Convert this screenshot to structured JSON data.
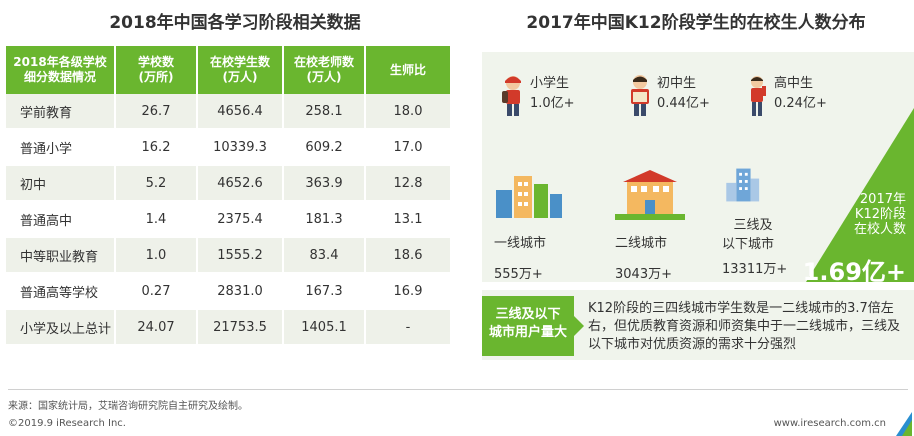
{
  "left_title": "2018年中国各学习阶段相关数据",
  "right_title": "2017年中国K12阶段学生的在校生人数分布",
  "table": {
    "headers": [
      [
        "2018年各级学校",
        "细分数据情况"
      ],
      [
        "学校数",
        "(万所)"
      ],
      [
        "在校学生数",
        "(万人)"
      ],
      [
        "在校老师数",
        "(万人)"
      ],
      [
        "生师比"
      ]
    ],
    "rows": [
      [
        "学前教育",
        "26.7",
        "4656.4",
        "258.1",
        "18.0"
      ],
      [
        "普通小学",
        "16.2",
        "10339.3",
        "609.2",
        "17.0"
      ],
      [
        "初中",
        "5.2",
        "4652.6",
        "363.9",
        "12.8"
      ],
      [
        "普通高中",
        "1.4",
        "2375.4",
        "181.3",
        "13.1"
      ],
      [
        "中等职业教育",
        "1.0",
        "1555.2",
        "83.4",
        "18.6"
      ],
      [
        "普通高等学校",
        "0.27",
        "2831.0",
        "167.3",
        "16.9"
      ],
      [
        "小学及以上总计",
        "24.07",
        "21753.5",
        "1405.1",
        "-"
      ]
    ]
  },
  "students": [
    {
      "label": "小学生",
      "value": "1.0亿+"
    },
    {
      "label": "初中生",
      "value": "0.44亿+"
    },
    {
      "label": "高中生",
      "value": "0.24亿+"
    }
  ],
  "cities": [
    {
      "label": "一线城市",
      "value": "555万+"
    },
    {
      "label": "二线城市",
      "value": "3043万+"
    },
    {
      "label_line1": "三线及",
      "label_line2": "以下城市",
      "value": "13311万+"
    }
  ],
  "total": {
    "line1": "2017年",
    "line2": "K12阶段",
    "line3": "在校人数",
    "value": "1.69亿+"
  },
  "note": {
    "callout_line1": "三线及以下",
    "callout_line2": "城市用户量大",
    "text": "K12阶段的三四线城市学生数是一二线城市的3.7倍左右，但优质教育资源和师资集中于一二线城市，三线及以下城市对优质资源的需求十分强烈"
  },
  "footer": {
    "source": "来源：国家统计局，艾瑞咨询研究院自主研究及绘制。",
    "copyright": "©2019.9 iResearch Inc.",
    "website": "www.iresearch.com.cn"
  },
  "colors": {
    "accent_green": "#6ab62f",
    "panel_bg": "#f0f4ec"
  }
}
